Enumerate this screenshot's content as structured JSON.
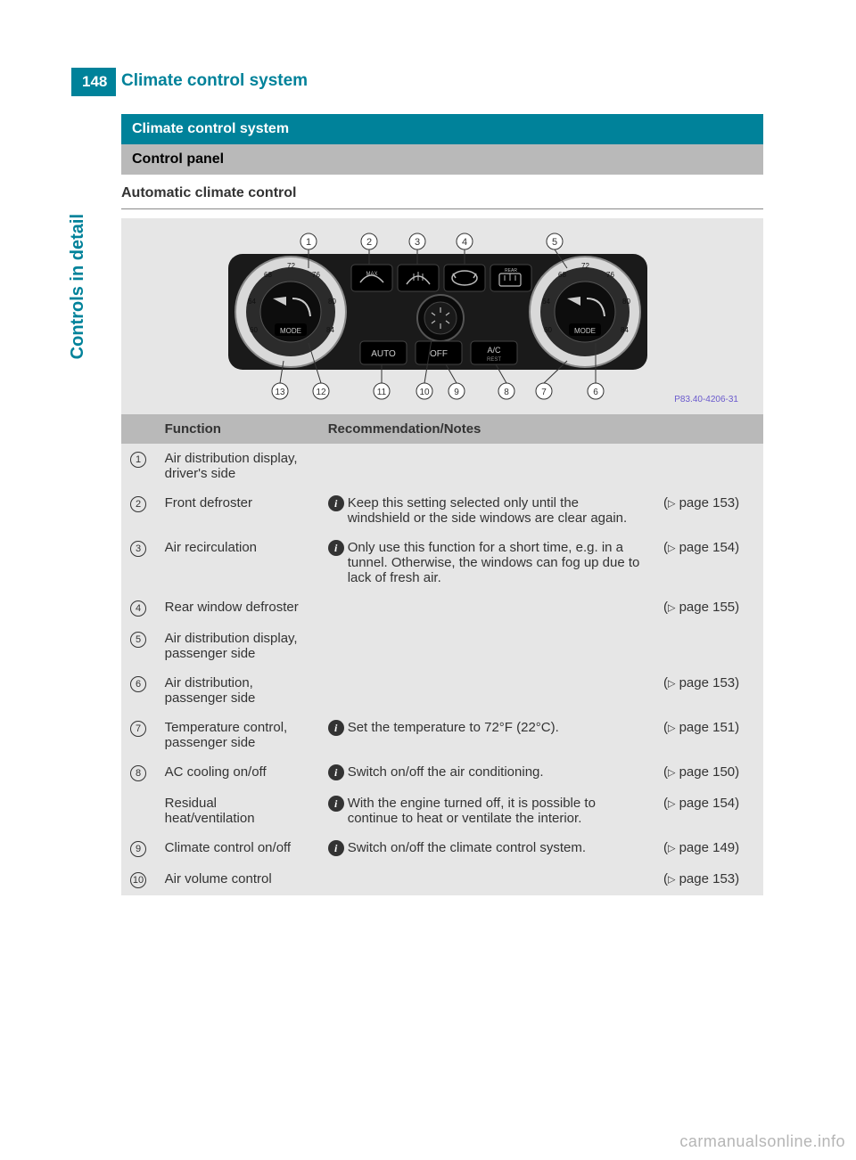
{
  "page": {
    "number": "148",
    "running_header": "Climate control system",
    "side_tab": "Controls in detail",
    "watermark": "carmanualsonline.info"
  },
  "headings": {
    "section": "Climate control system",
    "subsection": "Control panel",
    "h3": "Automatic climate control"
  },
  "figure": {
    "bg": "#e6e6e6",
    "code": "P83.40-4206-31",
    "callouts_top": [
      "1",
      "2",
      "3",
      "4",
      "5"
    ],
    "callouts_bottom": [
      "13",
      "12",
      "11",
      "10",
      "9",
      "8",
      "7",
      "6"
    ],
    "dial_ticks": [
      "60",
      "64",
      "68",
      "72",
      "76",
      "80",
      "84"
    ],
    "mode_label": "MODE",
    "btn_auto": "AUTO",
    "btn_off": "OFF",
    "btn_ac": "A/C",
    "btn_rest": "REST",
    "btn_max": "MAX",
    "btn_rear": "REAR"
  },
  "table": {
    "headers": {
      "function": "Function",
      "notes": "Recommendation/Notes"
    },
    "rows": [
      {
        "idx": "1",
        "func": "Air distribution display, driver's side",
        "note": "",
        "page": ""
      },
      {
        "idx": "2",
        "func": "Front defroster",
        "note": "Keep this setting selected only until the windshield or the side windows are clear again.",
        "page": "153"
      },
      {
        "idx": "3",
        "func": "Air recirculation",
        "note": "Only use this function for a short time, e.g. in a tunnel. Otherwise, the windows can fog up due to lack of fresh air.",
        "page": "154"
      },
      {
        "idx": "4",
        "func": "Rear window defroster",
        "note": "",
        "page": "155"
      },
      {
        "idx": "5",
        "func": "Air distribution display, passenger side",
        "note": "",
        "page": ""
      },
      {
        "idx": "6",
        "func": "Air distribution, passenger side",
        "note": "",
        "page": "153"
      },
      {
        "idx": "7",
        "func": "Temperature control, passenger side",
        "note": "Set the temperature to 72°F (22°C).",
        "page": "151"
      },
      {
        "idx": "8",
        "func": "AC cooling on/off",
        "note": "Switch on/off the air conditioning.",
        "page": "150"
      },
      {
        "idx": "",
        "func": "Residual heat/ventilation",
        "note": "With the engine turned off, it is possible to continue to heat or ventilate the interior.",
        "page": "154"
      },
      {
        "idx": "9",
        "func": "Climate control on/off",
        "note": "Switch on/off the climate control system.",
        "page": "149"
      },
      {
        "idx": "10",
        "func": "Air volume control",
        "note": "",
        "page": "153"
      }
    ]
  }
}
